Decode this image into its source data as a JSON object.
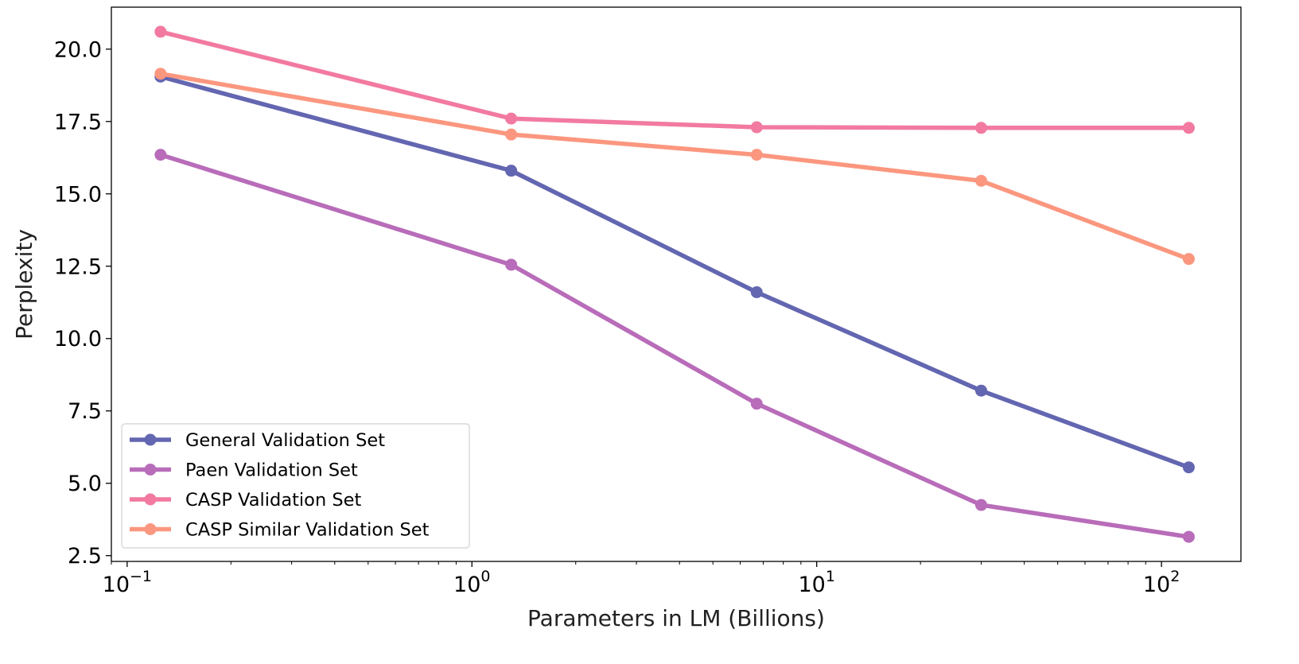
{
  "chart_data": {
    "type": "line",
    "title": "",
    "xlabel": "Parameters in LM (Billions)",
    "ylabel": "Perplexity",
    "xscale": "log",
    "xlim": [
      0.09,
      170
    ],
    "ylim": [
      2.3,
      21.45
    ],
    "x": [
      0.125,
      1.3,
      6.7,
      30,
      120
    ],
    "xticks": [
      {
        "value": 0.1,
        "base": "10",
        "exp": "−1"
      },
      {
        "value": 1,
        "base": "10",
        "exp": "0"
      },
      {
        "value": 10,
        "base": "10",
        "exp": "1"
      },
      {
        "value": 100,
        "base": "10",
        "exp": "2"
      }
    ],
    "yticks": [
      "2.5",
      "5.0",
      "7.5",
      "10.0",
      "12.5",
      "15.0",
      "17.5",
      "20.0"
    ],
    "grid": false,
    "legend_position": "lower-left",
    "series": [
      {
        "name": "General Validation Set",
        "color": "#6366b0",
        "values": [
          19.05,
          15.8,
          11.6,
          8.2,
          5.55
        ]
      },
      {
        "name": "Paen Validation Set",
        "color": "#b86cb9",
        "values": [
          16.35,
          12.55,
          7.75,
          4.25,
          3.15
        ]
      },
      {
        "name": "CASP Validation Set",
        "color": "#f27aa0",
        "values": [
          20.6,
          17.6,
          17.3,
          17.28,
          17.28
        ]
      },
      {
        "name": "CASP Similar Validation Set",
        "color": "#fb977f",
        "values": [
          19.15,
          17.05,
          16.35,
          15.45,
          12.75
        ]
      }
    ]
  }
}
